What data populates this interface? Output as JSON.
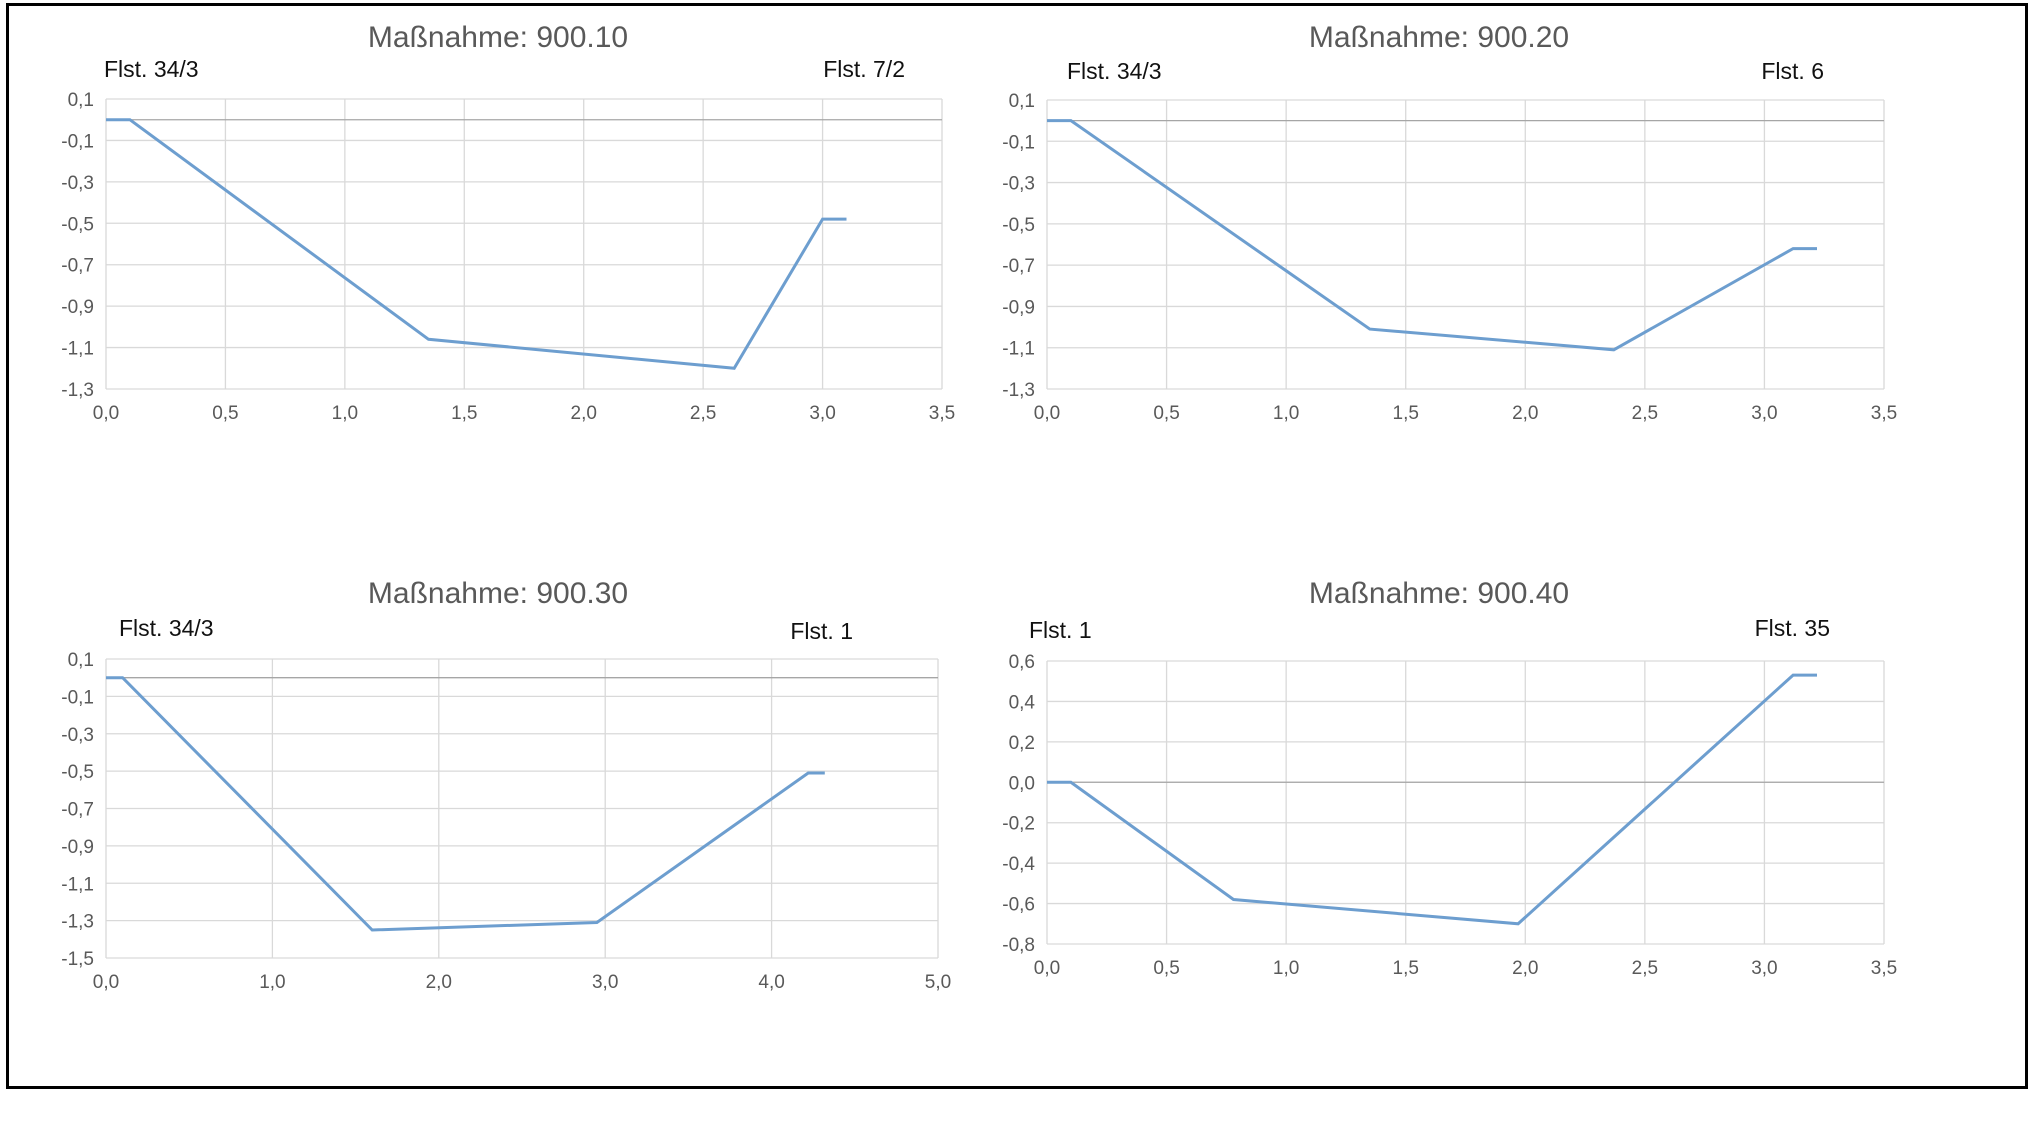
{
  "chart_data": [
    {
      "type": "line",
      "title": "Maßnahme: 900.10",
      "label_left": "Flst. 34/3",
      "label_right": "Flst. 7/2",
      "xlim": [
        0,
        3.5
      ],
      "xticks": [
        "0,0",
        "0,5",
        "1,0",
        "1,5",
        "2,0",
        "2,5",
        "3,0",
        "3,5"
      ],
      "ylim": [
        -1.3,
        0.1
      ],
      "yticks": [
        "0,1",
        "-0,1",
        "-0,3",
        "-0,5",
        "-0,7",
        "-0,9",
        "-1,1",
        "-1,3"
      ],
      "grid": true,
      "series": [
        {
          "x": [
            0,
            0.1,
            1.35,
            2.63,
            3.0,
            3.1
          ],
          "y": [
            0.0,
            0.0,
            -1.06,
            -1.2,
            -0.48,
            -0.48
          ]
        }
      ]
    },
    {
      "type": "line",
      "title": "Maßnahme: 900.20",
      "label_left": "Flst. 34/3",
      "label_right": "Flst. 6",
      "xlim": [
        0,
        3.5
      ],
      "xticks": [
        "0,0",
        "0,5",
        "1,0",
        "1,5",
        "2,0",
        "2,5",
        "3,0",
        "3,5"
      ],
      "ylim": [
        -1.3,
        0.1
      ],
      "yticks": [
        "0,1",
        "-0,1",
        "-0,3",
        "-0,5",
        "-0,7",
        "-0,9",
        "-1,1",
        "-1,3"
      ],
      "grid": true,
      "series": [
        {
          "x": [
            0,
            0.1,
            1.35,
            2.37,
            3.12,
            3.22
          ],
          "y": [
            0.0,
            0.0,
            -1.01,
            -1.11,
            -0.62,
            -0.62
          ]
        }
      ]
    },
    {
      "type": "line",
      "title": "Maßnahme: 900.30",
      "label_left": "Flst. 34/3",
      "label_right": "Flst. 1",
      "xlim": [
        0,
        5.0
      ],
      "xticks": [
        "0,0",
        "1,0",
        "2,0",
        "3,0",
        "4,0",
        "5,0"
      ],
      "ylim": [
        -1.5,
        0.1
      ],
      "yticks": [
        "0,1",
        "-0,1",
        "-0,3",
        "-0,5",
        "-0,7",
        "-0,9",
        "-1,1",
        "-1,3",
        "-1,5"
      ],
      "grid": true,
      "series": [
        {
          "x": [
            0,
            0.1,
            1.6,
            2.95,
            4.22,
            4.32
          ],
          "y": [
            0.0,
            0.0,
            -1.35,
            -1.31,
            -0.51,
            -0.51
          ]
        }
      ]
    },
    {
      "type": "line",
      "title": "Maßnahme: 900.40",
      "label_left": "Flst. 1",
      "label_right": "Flst. 35",
      "xlim": [
        0,
        3.5
      ],
      "xticks": [
        "0,0",
        "0,5",
        "1,0",
        "1,5",
        "2,0",
        "2,5",
        "3,0",
        "3,5"
      ],
      "ylim": [
        -0.8,
        0.6
      ],
      "yticks": [
        "0,6",
        "0,4",
        "0,2",
        "0,0",
        "-0,2",
        "-0,4",
        "-0,6",
        "-0,8"
      ],
      "grid": true,
      "series": [
        {
          "x": [
            0,
            0.1,
            0.78,
            1.97,
            3.12,
            3.22
          ],
          "y": [
            0.0,
            0.0,
            -0.58,
            -0.7,
            0.53,
            0.53
          ]
        }
      ]
    }
  ],
  "colors": {
    "line": "#6d9ecf",
    "grid": "#d9d9d9",
    "zero_line": "#a6a6a6",
    "tick_text": "#595959",
    "frame": "#000000"
  }
}
